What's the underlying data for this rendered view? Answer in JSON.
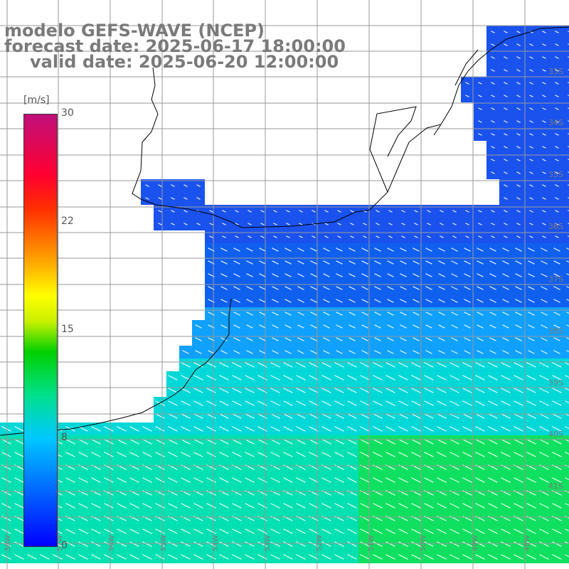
{
  "title": {
    "line1": "modelo GEFS-WAVE (NCEP)",
    "line2": "forecast date: 2025-06-17 18:00:00",
    "line3": "valid date: 2025-06-20 12:00:00"
  },
  "colorbar": {
    "unit": "[m/s]",
    "ticks": [
      "30",
      "22",
      "15",
      "8",
      "0"
    ],
    "colors": [
      "#0000ff",
      "#00c8ff",
      "#00e08c",
      "#00d000",
      "#ffff00",
      "#ffa500",
      "#ff3000",
      "#c0107a"
    ]
  },
  "latitude_labels": [
    "33S",
    "34S",
    "35S",
    "36S",
    "37S",
    "38S",
    "39S",
    "40S",
    "41S"
  ],
  "longitude_labels": [
    "58W",
    "57W",
    "56W",
    "55W",
    "54W",
    "53W",
    "52W",
    "51W",
    "50W",
    "49W",
    "48W"
  ],
  "colors": {
    "land": "#ffffff",
    "grid": "#999999",
    "coast": "#000000",
    "label": "#7a7a7a"
  }
}
